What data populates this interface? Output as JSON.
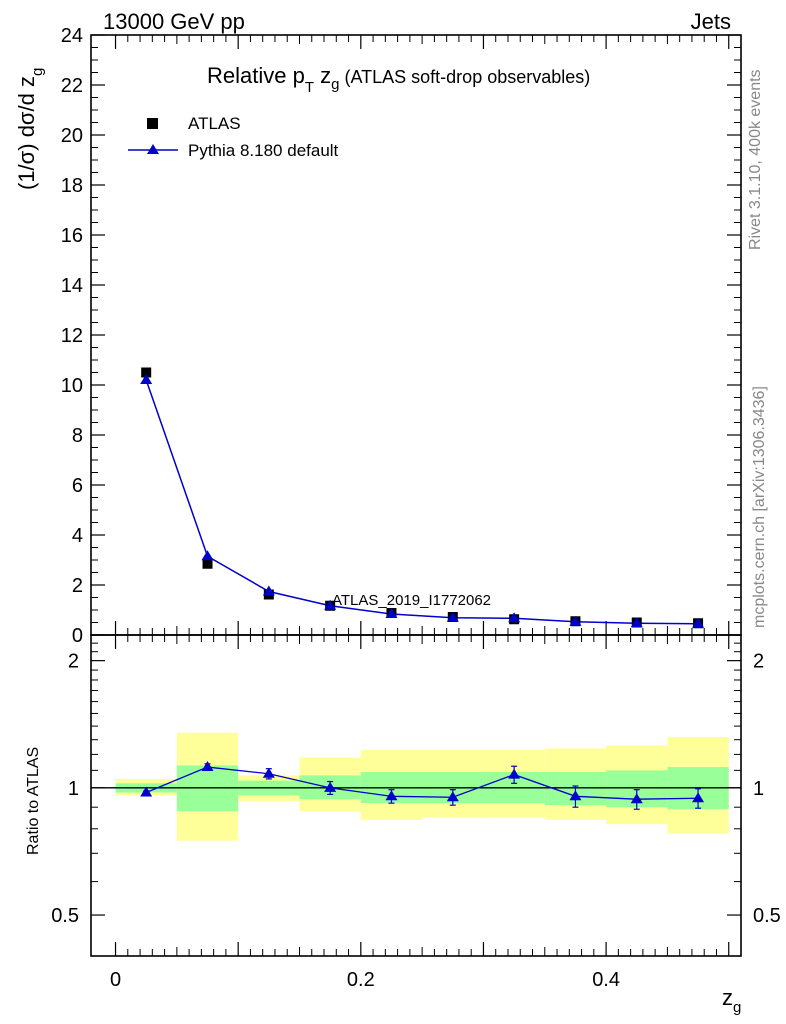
{
  "header": {
    "energy_label": "13000 GeV pp",
    "category_label": "Jets"
  },
  "side_labels": {
    "rivet": "Rivet 3.1.10,  400k events",
    "mcplots": "mcplots.cern.ch [arXiv:1306.3436]"
  },
  "colors": {
    "data_marker": "#000000",
    "mc_line": "#0000cc",
    "band_inner": "#99ff99",
    "band_outer": "#ffff99",
    "analysis_label": "#999999"
  },
  "chart_data": [
    {
      "type": "scatter",
      "title": "Relative p_T z_g (ATLAS soft-drop observables)",
      "title_parts": {
        "prefix": "Relative p",
        "sub1": "T",
        "mid": " z",
        "sub2": "g",
        "suffix": " (ATLAS soft-drop observables)"
      },
      "ylabel": "(1/σ) dσ/d z_g",
      "ylabel_parts": {
        "main": "(1/σ) dσ/d z",
        "sub": "g"
      },
      "analysis_label": "ATLAS_2019_I1772062",
      "xlim": [
        -0.02,
        0.51
      ],
      "ylim": [
        0,
        24
      ],
      "yticks": [
        0,
        2,
        4,
        6,
        8,
        10,
        12,
        14,
        16,
        18,
        20,
        22,
        24
      ],
      "legend": "top-left",
      "x": [
        0.025,
        0.075,
        0.125,
        0.175,
        0.225,
        0.275,
        0.325,
        0.375,
        0.425,
        0.475
      ],
      "series": [
        {
          "name": "ATLAS",
          "marker": "square",
          "values": [
            10.5,
            2.85,
            1.62,
            1.17,
            0.88,
            0.72,
            0.63,
            0.55,
            0.5,
            0.47
          ]
        },
        {
          "name": "Pythia 8.180 default",
          "marker": "triangle",
          "values": [
            10.2,
            3.15,
            1.74,
            1.17,
            0.84,
            0.69,
            0.67,
            0.53,
            0.47,
            0.45
          ]
        }
      ]
    },
    {
      "type": "scatter",
      "ylabel": "Ratio to ATLAS",
      "xlabel": "z_g",
      "xlabel_parts": {
        "main": "z",
        "sub": "g"
      },
      "xlim": [
        -0.02,
        0.51
      ],
      "ylim": [
        0.4,
        2.3
      ],
      "yscale": "log",
      "yticks": [
        0.5,
        1,
        2
      ],
      "xticks": [
        0,
        0.2,
        0.4
      ],
      "reference_line": 1,
      "bins": [
        [
          0.0,
          0.05
        ],
        [
          0.05,
          0.1
        ],
        [
          0.1,
          0.15
        ],
        [
          0.15,
          0.2
        ],
        [
          0.2,
          0.25
        ],
        [
          0.25,
          0.3
        ],
        [
          0.3,
          0.35
        ],
        [
          0.35,
          0.4
        ],
        [
          0.4,
          0.45
        ],
        [
          0.45,
          0.5
        ]
      ],
      "band_inner": [
        [
          0.975,
          1.025
        ],
        [
          0.88,
          1.13
        ],
        [
          0.96,
          1.04
        ],
        [
          0.94,
          1.07
        ],
        [
          0.92,
          1.09
        ],
        [
          0.92,
          1.09
        ],
        [
          0.92,
          1.09
        ],
        [
          0.91,
          1.09
        ],
        [
          0.9,
          1.1
        ],
        [
          0.89,
          1.12
        ]
      ],
      "band_outer": [
        [
          0.96,
          1.05
        ],
        [
          0.75,
          1.35
        ],
        [
          0.93,
          1.07
        ],
        [
          0.88,
          1.18
        ],
        [
          0.84,
          1.23
        ],
        [
          0.85,
          1.23
        ],
        [
          0.85,
          1.23
        ],
        [
          0.84,
          1.24
        ],
        [
          0.82,
          1.26
        ],
        [
          0.78,
          1.32
        ]
      ],
      "x": [
        0.025,
        0.075,
        0.125,
        0.175,
        0.225,
        0.275,
        0.325,
        0.375,
        0.425,
        0.475
      ],
      "series": [
        {
          "name": "Pythia 8.180 default",
          "values": [
            0.975,
            1.12,
            1.08,
            1.0,
            0.955,
            0.95,
            1.075,
            0.955,
            0.94,
            0.945
          ],
          "errors": [
            0.008,
            0.02,
            0.03,
            0.035,
            0.035,
            0.04,
            0.05,
            0.055,
            0.05,
            0.05
          ]
        }
      ]
    }
  ]
}
